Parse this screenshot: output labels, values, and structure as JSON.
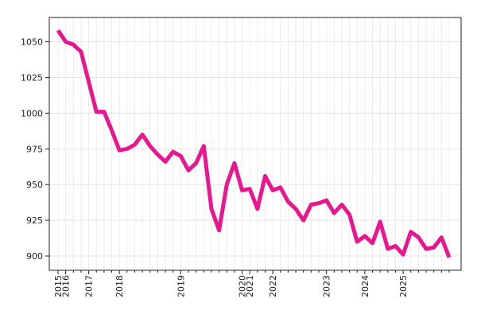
{
  "chart_data": {
    "type": "line",
    "categories": [
      "2015",
      "2016",
      null,
      null,
      "2017",
      null,
      null,
      null,
      "2018",
      null,
      null,
      null,
      null,
      null,
      null,
      null,
      "2019",
      null,
      null,
      null,
      null,
      null,
      null,
      null,
      "2020",
      "2021",
      null,
      null,
      "2022",
      null,
      null,
      null,
      null,
      null,
      null,
      "2023",
      null,
      null,
      null,
      null,
      "2024",
      null,
      null,
      null,
      null,
      "2025",
      null,
      null,
      null,
      null,
      null,
      null
    ],
    "series": [
      {
        "color": "#e8168f",
        "values": [
          1058,
          1050,
          1048,
          1043,
          1022,
          1001,
          1001,
          988,
          974,
          975,
          978,
          985,
          977,
          971,
          966,
          973,
          970,
          960,
          965,
          977,
          933,
          918,
          950,
          965,
          946,
          947,
          933,
          956,
          946,
          948,
          938,
          933,
          925,
          936,
          937,
          939,
          930,
          936,
          929,
          910,
          914,
          909,
          924,
          905,
          907,
          901,
          917,
          913,
          905,
          906,
          913,
          899
        ]
      }
    ],
    "ylim": [
      890,
      1067
    ],
    "yticks": [
      900,
      925,
      950,
      975,
      1000,
      1025,
      1050
    ],
    "grid": true
  }
}
